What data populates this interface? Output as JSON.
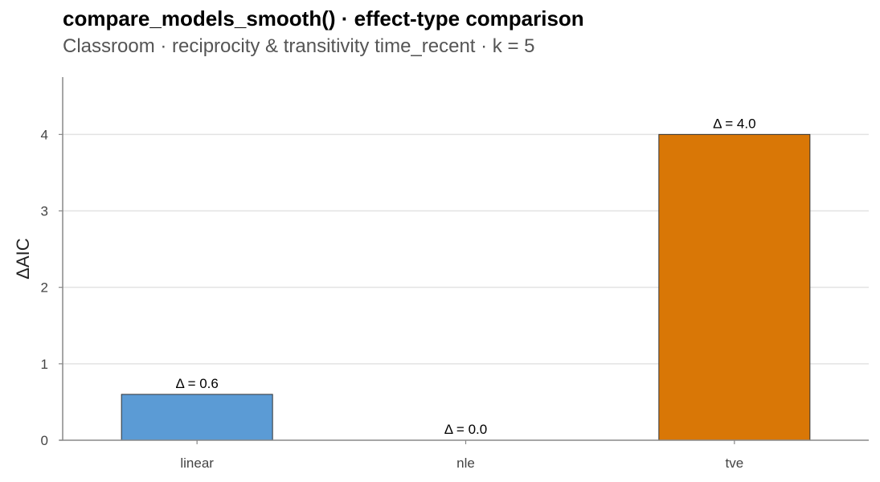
{
  "title": "compare_models_smooth() · effect-type comparison",
  "subtitle": "Classroom · reciprocity & transitivity time_recent · k = 5",
  "chart_data": {
    "type": "bar",
    "title": "compare_models_smooth() · effect-type comparison",
    "subtitle": "Classroom · reciprocity & transitivity time_recent · k = 5",
    "xlabel": "",
    "ylabel": "ΔAIC",
    "categories": [
      "linear",
      "nle",
      "tve"
    ],
    "values": [
      0.6,
      0.0,
      4.0
    ],
    "data_labels": [
      "Δ = 0.6",
      "Δ = 0.0",
      "Δ = 4.0"
    ],
    "colors": [
      "#5b9bd5",
      "#999999",
      "#d97706"
    ],
    "ylim": [
      0,
      4.75
    ],
    "yticks": [
      0,
      1,
      2,
      3,
      4
    ],
    "grid": true,
    "legend": "none"
  }
}
